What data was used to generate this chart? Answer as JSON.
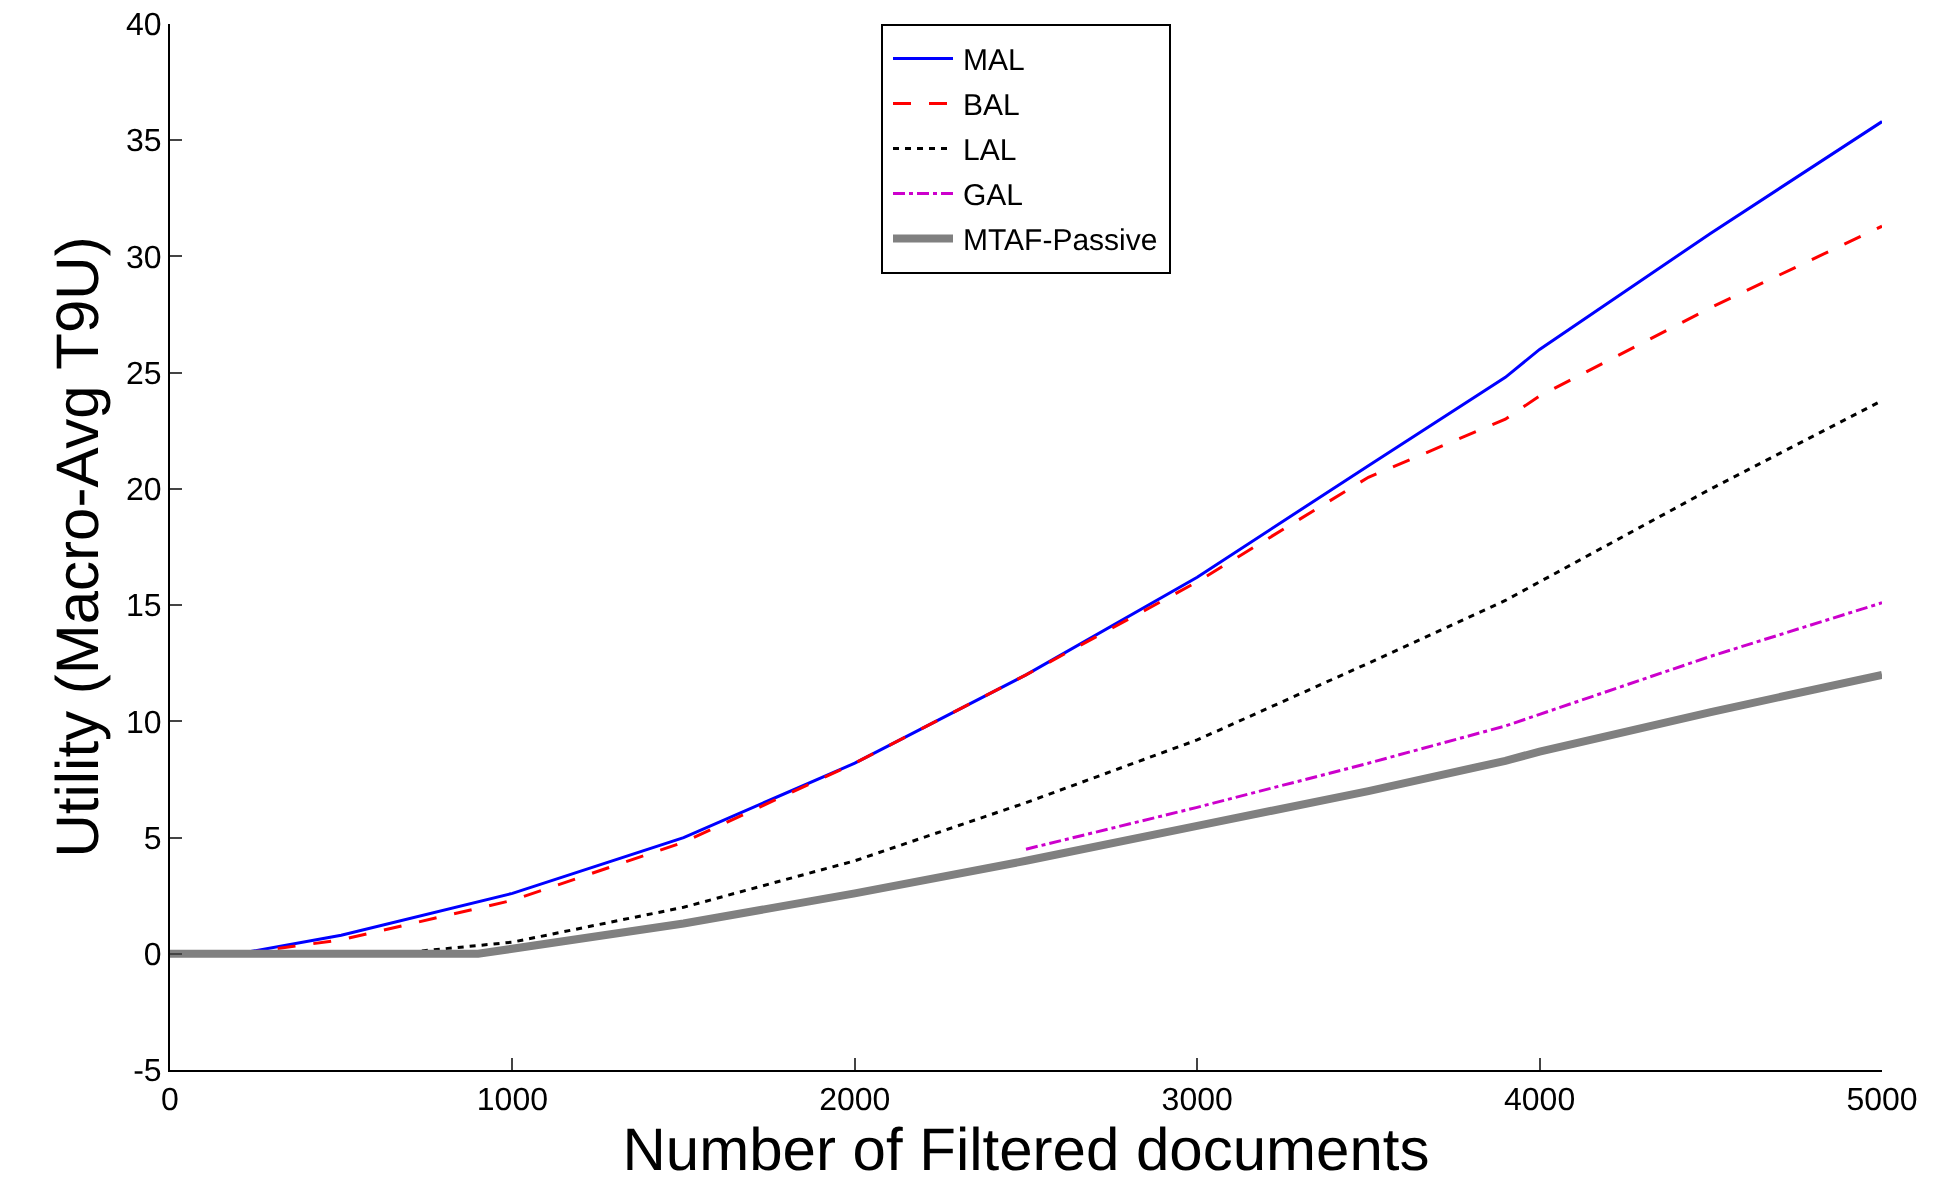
{
  "chart_data": {
    "type": "line",
    "xlabel": "Number of Filtered documents",
    "ylabel": "Utility (Macro-Avg T9U)",
    "xlim": [
      0,
      5000
    ],
    "xticks": [
      0,
      1000,
      2000,
      3000,
      4000,
      5000
    ],
    "ylim": [
      -5,
      40
    ],
    "yticks": [
      -5,
      0,
      5,
      10,
      15,
      20,
      25,
      30,
      35,
      40
    ],
    "grid": false,
    "legend": "top",
    "marker": "none",
    "series": [
      {
        "name": "MAL",
        "color": "#0000ff",
        "line_style": "solid",
        "x": [
          0,
          200,
          500,
          1000,
          1500,
          2000,
          2500,
          3000,
          3500,
          3900,
          4000,
          4500,
          5000
        ],
        "values": [
          0,
          0,
          0.8,
          2.6,
          5,
          8.2,
          12,
          16.2,
          21,
          24.8,
          26,
          31,
          35.8
        ]
      },
      {
        "name": "BAL",
        "color": "#ff0000",
        "line_style": "dashed",
        "x": [
          0,
          200,
          500,
          1000,
          1500,
          2000,
          2500,
          3000,
          3500,
          3900,
          4000,
          4500,
          5000
        ],
        "values": [
          0,
          0,
          0.6,
          2.3,
          4.8,
          8.2,
          12,
          16,
          20.5,
          23,
          24,
          27.8,
          31.3
        ]
      },
      {
        "name": "LAL",
        "color": "#000000",
        "line_style": "dotted",
        "x": [
          0,
          650,
          1000,
          1500,
          2000,
          2500,
          3000,
          3500,
          3900,
          4000,
          4500,
          5000
        ],
        "values": [
          0,
          0,
          0.5,
          2,
          4,
          6.5,
          9.2,
          12.5,
          15.2,
          16,
          20,
          23.8
        ]
      },
      {
        "name": "GAL",
        "color": "#cc00cc",
        "line_style": "dashdot",
        "x": [
          2500,
          3000,
          3500,
          3900,
          4000,
          4500,
          5000
        ],
        "values": [
          4.5,
          6.3,
          8.2,
          9.8,
          10.3,
          12.8,
          15.1
        ]
      },
      {
        "name": "MTAF-Passive",
        "color": "#808080",
        "line_style": "solid",
        "x": [
          0,
          900,
          1500,
          2000,
          2500,
          3000,
          3500,
          3900,
          4000,
          4500,
          5000
        ],
        "values": [
          0,
          0,
          1.3,
          2.6,
          4,
          5.5,
          7,
          8.3,
          8.7,
          10.4,
          12
        ]
      }
    ]
  }
}
